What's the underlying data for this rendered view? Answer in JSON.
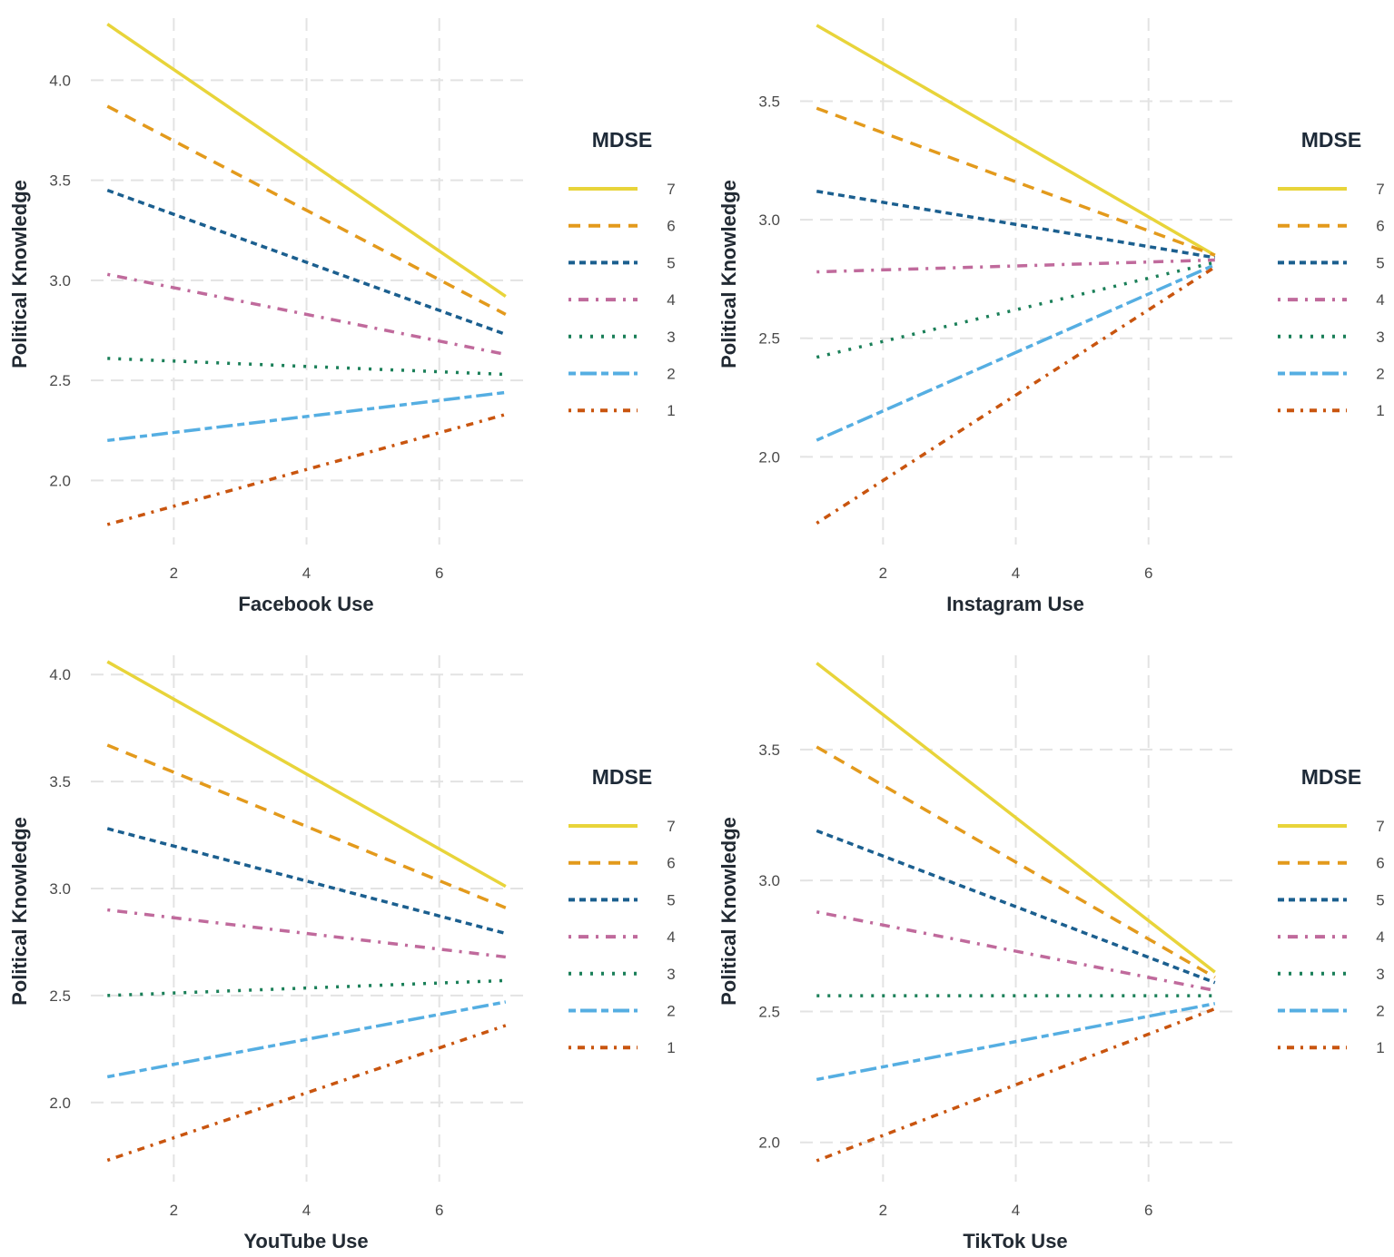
{
  "chart_data": [
    {
      "type": "line",
      "title": "",
      "xlabel": "Facebook Use",
      "ylabel": "Political Knowledge",
      "xlim": [
        0.75,
        7.29
      ],
      "ylim": [
        1.68,
        4.31
      ],
      "xticks": [
        2,
        4,
        6
      ],
      "yticks": [
        2.0,
        2.5,
        3.0,
        3.5,
        4.0
      ],
      "grid": true,
      "x": [
        1,
        7
      ],
      "legend_title": "MDSE",
      "legend_position": "right",
      "series": [
        {
          "name": "7",
          "values": [
            4.28,
            2.92
          ]
        },
        {
          "name": "6",
          "values": [
            3.87,
            2.83
          ]
        },
        {
          "name": "5",
          "values": [
            3.45,
            2.73
          ]
        },
        {
          "name": "4",
          "values": [
            3.03,
            2.63
          ]
        },
        {
          "name": "3",
          "values": [
            2.61,
            2.53
          ]
        },
        {
          "name": "2",
          "values": [
            2.2,
            2.44
          ]
        },
        {
          "name": "1",
          "values": [
            1.78,
            2.33
          ]
        }
      ]
    },
    {
      "type": "line",
      "title": "",
      "xlabel": "Instagram Use",
      "ylabel": "Political Knowledge",
      "xlim": [
        0.75,
        7.29
      ],
      "ylim": [
        1.63,
        3.85
      ],
      "xticks": [
        2,
        4,
        6
      ],
      "yticks": [
        2.0,
        2.5,
        3.0,
        3.5
      ],
      "grid": true,
      "x": [
        1,
        7
      ],
      "legend_title": "MDSE",
      "legend_position": "right",
      "series": [
        {
          "name": "7",
          "values": [
            3.82,
            2.85
          ]
        },
        {
          "name": "6",
          "values": [
            3.47,
            2.85
          ]
        },
        {
          "name": "5",
          "values": [
            3.12,
            2.84
          ]
        },
        {
          "name": "4",
          "values": [
            2.78,
            2.83
          ]
        },
        {
          "name": "3",
          "values": [
            2.42,
            2.82
          ]
        },
        {
          "name": "2",
          "values": [
            2.07,
            2.81
          ]
        },
        {
          "name": "1",
          "values": [
            1.72,
            2.8
          ]
        }
      ]
    },
    {
      "type": "line",
      "title": "",
      "xlabel": "YouTube Use",
      "ylabel": "Political Knowledge",
      "xlim": [
        0.75,
        7.29
      ],
      "ylim": [
        1.63,
        4.09
      ],
      "xticks": [
        2,
        4,
        6
      ],
      "yticks": [
        2.0,
        2.5,
        3.0,
        3.5,
        4.0
      ],
      "grid": true,
      "x": [
        1,
        7
      ],
      "legend_title": "MDSE",
      "legend_position": "right",
      "series": [
        {
          "name": "7",
          "values": [
            4.06,
            3.01
          ]
        },
        {
          "name": "6",
          "values": [
            3.67,
            2.91
          ]
        },
        {
          "name": "5",
          "values": [
            3.28,
            2.79
          ]
        },
        {
          "name": "4",
          "values": [
            2.9,
            2.68
          ]
        },
        {
          "name": "3",
          "values": [
            2.5,
            2.57
          ]
        },
        {
          "name": "2",
          "values": [
            2.12,
            2.47
          ]
        },
        {
          "name": "1",
          "values": [
            1.73,
            2.36
          ]
        }
      ]
    },
    {
      "type": "line",
      "title": "",
      "xlabel": "TikTok Use",
      "ylabel": "Political Knowledge",
      "xlim": [
        0.75,
        7.29
      ],
      "ylim": [
        1.85,
        3.86
      ],
      "xticks": [
        2,
        4,
        6
      ],
      "yticks": [
        2.0,
        2.5,
        3.0,
        3.5
      ],
      "grid": true,
      "x": [
        1,
        7
      ],
      "legend_title": "MDSE",
      "legend_position": "right",
      "series": [
        {
          "name": "7",
          "values": [
            3.83,
            2.65
          ]
        },
        {
          "name": "6",
          "values": [
            3.51,
            2.63
          ]
        },
        {
          "name": "5",
          "values": [
            3.19,
            2.61
          ]
        },
        {
          "name": "4",
          "values": [
            2.88,
            2.58
          ]
        },
        {
          "name": "3",
          "values": [
            2.56,
            2.56
          ]
        },
        {
          "name": "2",
          "values": [
            2.24,
            2.53
          ]
        },
        {
          "name": "1",
          "values": [
            1.93,
            2.51
          ]
        }
      ]
    }
  ],
  "series_styles": {
    "7": {
      "color": "#E8D43A",
      "dash": ""
    },
    "6": {
      "color": "#E39A1C",
      "dash": "13,9"
    },
    "5": {
      "color": "#1B5F8F",
      "dash": "7,5"
    },
    "4": {
      "color": "#C06A9C",
      "dash": "3,8,11,8"
    },
    "3": {
      "color": "#1A7F58",
      "dash": "3,9"
    },
    "2": {
      "color": "#55AEE2",
      "dash": "8,5,18,5"
    },
    "1": {
      "color": "#C9550F",
      "dash": "3,7,8,7"
    }
  }
}
